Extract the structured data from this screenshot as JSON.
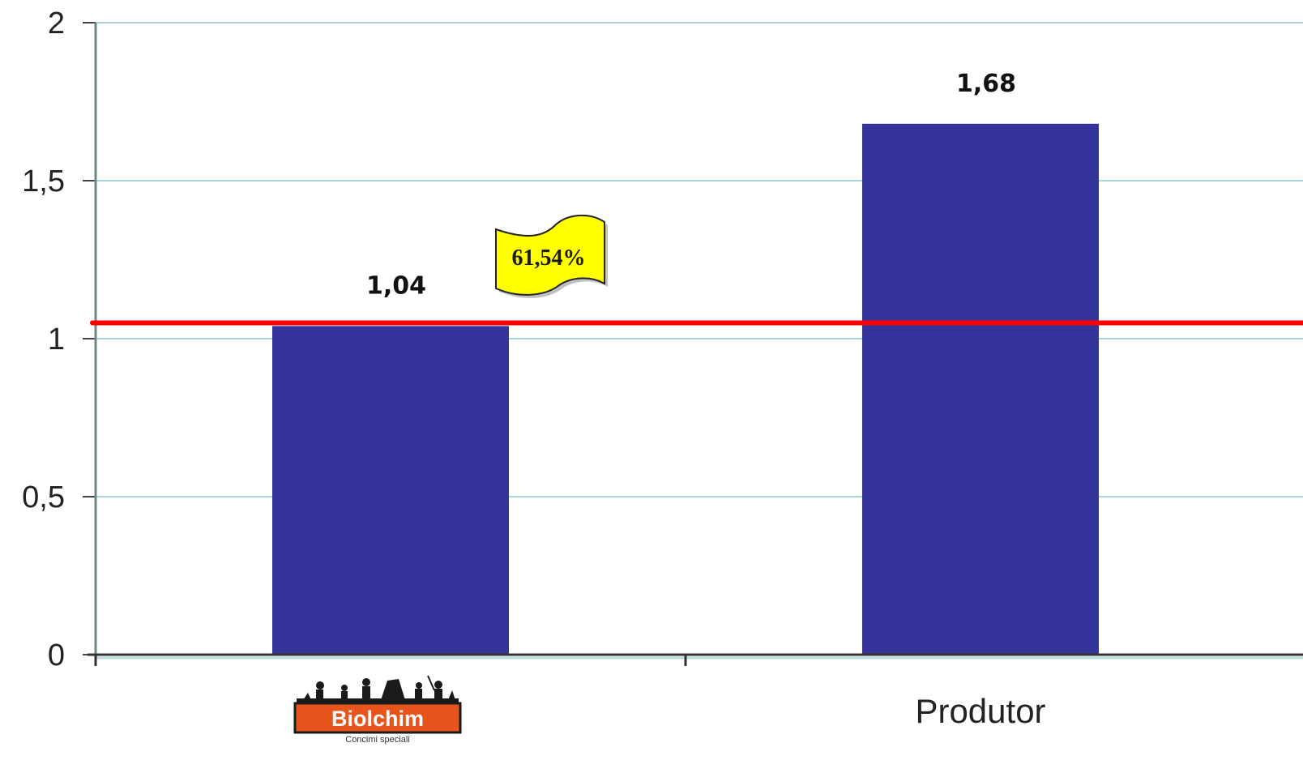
{
  "chart_data": {
    "type": "bar",
    "categories": [
      "Biolchim",
      "Produtor"
    ],
    "values": [
      1.04,
      1.68
    ],
    "data_labels": [
      "1,04",
      "1,68"
    ],
    "ylim": [
      0,
      2
    ],
    "yticks": [
      0,
      0.5,
      1,
      1.5,
      2
    ],
    "ytick_labels": [
      "0",
      "0,5",
      "1",
      "1,5",
      "2"
    ],
    "grid": true,
    "legend": "none",
    "reference_line": {
      "value": 1.05,
      "color": "#ff0000"
    },
    "callout": {
      "text": "61,54%",
      "color": "#ffff00"
    },
    "bar_color": "#333399",
    "grid_color": "#a8d4dc"
  },
  "logo": {
    "name": "Biolchim",
    "tagline": "Concimi speciali",
    "color": "#e8551c"
  }
}
